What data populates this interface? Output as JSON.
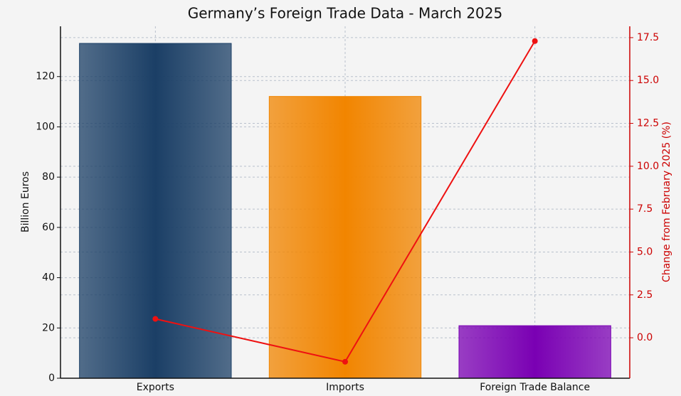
{
  "chart_data": {
    "type": "bar_line",
    "title": "Germany’s Foreign Trade Data - March 2025",
    "ylabel": "Billion Euros",
    "y2label": "Change from February 2025 (%)",
    "categories": [
      "Exports",
      "Imports",
      "Foreign Trade Balance"
    ],
    "series": [
      {
        "type": "bar",
        "colors": [
          "#1b3f66",
          "#f28500",
          "#7a00b3"
        ],
        "values": [
          133.2,
          112.1,
          20.9
        ]
      },
      {
        "type": "line",
        "axis": "y2",
        "color": "#ee1111",
        "values": [
          1.1,
          -1.4,
          17.3
        ]
      }
    ],
    "ylim": [
      0,
      140
    ],
    "yticks": [
      0,
      20,
      40,
      60,
      80,
      100,
      120
    ],
    "y2lim": [
      -2.36,
      18.16
    ],
    "y2ticks": [
      {
        "value": 0,
        "label": "0.0"
      },
      2.5,
      {
        "value": 5,
        "label": "5.0"
      },
      7.5,
      {
        "value": 10,
        "label": "10.0"
      },
      12.5,
      {
        "value": 15,
        "label": "15.0"
      },
      17.5
    ],
    "y2color": "#cc0000",
    "grid": true
  }
}
